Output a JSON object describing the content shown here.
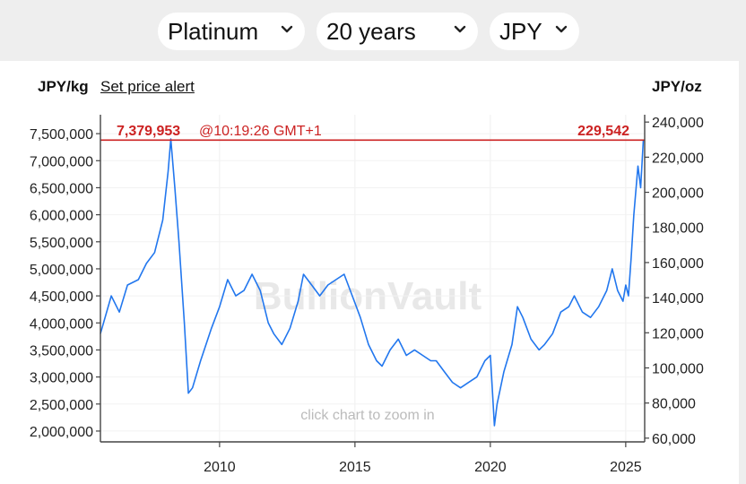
{
  "controls": {
    "metal": "Platinum",
    "period": "20 years",
    "currency": "JPY"
  },
  "header": {
    "left_unit": "JPY/kg",
    "alert_link": "Set price alert",
    "right_unit": "JPY/oz"
  },
  "watermark": "BullionVault",
  "zoom_hint": "click chart to zoom in",
  "current": {
    "price_kg": "7,379,953",
    "time": "@10:19:26 GMT+1",
    "price_oz": "229,542",
    "value_kg": 7379953
  },
  "colors": {
    "line": "#2277ee",
    "current_line": "#cc2222",
    "axis": "#444444"
  },
  "chart_data": {
    "type": "line",
    "xlim": [
      2005.6,
      2025.7
    ],
    "ylim_left": [
      1800000,
      7850000
    ],
    "ylim_right": [
      57877,
      244175
    ],
    "x_ticks": [
      2010,
      2015,
      2020,
      2025
    ],
    "x_tick_labels": [
      "2010",
      "2015",
      "2020",
      "2025"
    ],
    "y_left_ticks": [
      2000000,
      2500000,
      3000000,
      3500000,
      4000000,
      4500000,
      5000000,
      5500000,
      6000000,
      6500000,
      7000000,
      7500000
    ],
    "y_left_tick_labels": [
      "2,000,000",
      "2,500,000",
      "3,000,000",
      "3,500,000",
      "4,000,000",
      "4,500,000",
      "5,000,000",
      "5,500,000",
      "6,000,000",
      "6,500,000",
      "7,000,000",
      "7,500,000"
    ],
    "y_right_ticks": [
      60000,
      80000,
      100000,
      120000,
      140000,
      160000,
      180000,
      200000,
      220000,
      240000
    ],
    "y_right_tick_labels": [
      "60,000",
      "80,000",
      "100,000",
      "120,000",
      "140,000",
      "160,000",
      "180,000",
      "200,000",
      "220,000",
      "240,000"
    ],
    "series": [
      {
        "x": [
          2005.6,
          2006.0,
          2006.3,
          2006.6,
          2007.0,
          2007.3,
          2007.6,
          2007.9,
          2008.1,
          2008.2,
          2008.35,
          2008.5,
          2008.7,
          2008.85,
          2009.0,
          2009.3,
          2009.7,
          2010.0,
          2010.3,
          2010.6,
          2010.9,
          2011.2,
          2011.5,
          2011.8,
          2012.0,
          2012.3,
          2012.6,
          2012.9,
          2013.1,
          2013.4,
          2013.7,
          2014.0,
          2014.3,
          2014.6,
          2014.9,
          2015.2,
          2015.5,
          2015.8,
          2016.0,
          2016.3,
          2016.6,
          2016.9,
          2017.2,
          2017.5,
          2017.8,
          2018.0,
          2018.3,
          2018.6,
          2018.9,
          2019.2,
          2019.5,
          2019.8,
          2020.0,
          2020.15,
          2020.25,
          2020.5,
          2020.8,
          2021.0,
          2021.2,
          2021.5,
          2021.8,
          2022.0,
          2022.3,
          2022.6,
          2022.9,
          2023.1,
          2023.4,
          2023.7,
          2024.0,
          2024.3,
          2024.5,
          2024.7,
          2024.9,
          2025.0,
          2025.1,
          2025.2,
          2025.3,
          2025.45,
          2025.55,
          2025.65
        ],
        "values": [
          3800000,
          4500000,
          4200000,
          4700000,
          4800000,
          5100000,
          5300000,
          5900000,
          6800000,
          7400000,
          6500000,
          5500000,
          4000000,
          2700000,
          2800000,
          3300000,
          3900000,
          4300000,
          4800000,
          4500000,
          4600000,
          4900000,
          4600000,
          4000000,
          3800000,
          3600000,
          3900000,
          4400000,
          4900000,
          4700000,
          4500000,
          4700000,
          4800000,
          4900000,
          4500000,
          4100000,
          3600000,
          3300000,
          3200000,
          3500000,
          3700000,
          3400000,
          3500000,
          3400000,
          3300000,
          3300000,
          3100000,
          2900000,
          2800000,
          2900000,
          3000000,
          3300000,
          3400000,
          2100000,
          2500000,
          3100000,
          3600000,
          4300000,
          4100000,
          3700000,
          3500000,
          3600000,
          3800000,
          4200000,
          4300000,
          4500000,
          4200000,
          4100000,
          4300000,
          4600000,
          5000000,
          4600000,
          4400000,
          4700000,
          4500000,
          5200000,
          6000000,
          6900000,
          6500000,
          7380000
        ]
      }
    ]
  }
}
